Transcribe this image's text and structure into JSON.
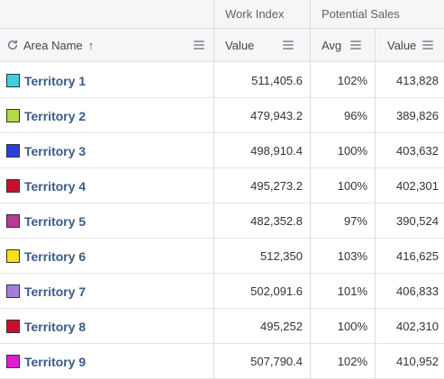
{
  "group_headers": {
    "work_index": "Work Index",
    "potential_sales": "Potential Sales"
  },
  "column_headers": {
    "area_name": "Area Name",
    "work_value": "Value",
    "avg": "Avg",
    "sales_value": "Value"
  },
  "icons": {
    "refresh": "refresh-icon",
    "sort": "arrow-up-icon",
    "menu": "menu-icon"
  },
  "colors": {
    "header_bg": "#f5f6f7",
    "link_text": "#3b5a85"
  },
  "rows": [
    {
      "name": "Territory 1",
      "color": "#3fd0e0",
      "work_value": "511,405.6",
      "avg": "102%",
      "sales_value": "413,828"
    },
    {
      "name": "Territory 2",
      "color": "#b5d84a",
      "work_value": "479,943.2",
      "avg": "96%",
      "sales_value": "389,826"
    },
    {
      "name": "Territory 3",
      "color": "#2b3fd6",
      "work_value": "498,910.4",
      "avg": "100%",
      "sales_value": "403,632"
    },
    {
      "name": "Territory 4",
      "color": "#c8102e",
      "work_value": "495,273.2",
      "avg": "100%",
      "sales_value": "402,301"
    },
    {
      "name": "Territory 5",
      "color": "#b83a94",
      "work_value": "482,352.8",
      "avg": "97%",
      "sales_value": "390,524"
    },
    {
      "name": "Territory 6",
      "color": "#f5e11c",
      "work_value": "512,350",
      "avg": "103%",
      "sales_value": "416,625"
    },
    {
      "name": "Territory 7",
      "color": "#a57ddc",
      "work_value": "502,091.6",
      "avg": "101%",
      "sales_value": "406,833"
    },
    {
      "name": "Territory 8",
      "color": "#c8102e",
      "work_value": "495,252",
      "avg": "100%",
      "sales_value": "402,310"
    },
    {
      "name": "Territory 9",
      "color": "#e21bd6",
      "work_value": "507,790.4",
      "avg": "102%",
      "sales_value": "410,952"
    }
  ]
}
